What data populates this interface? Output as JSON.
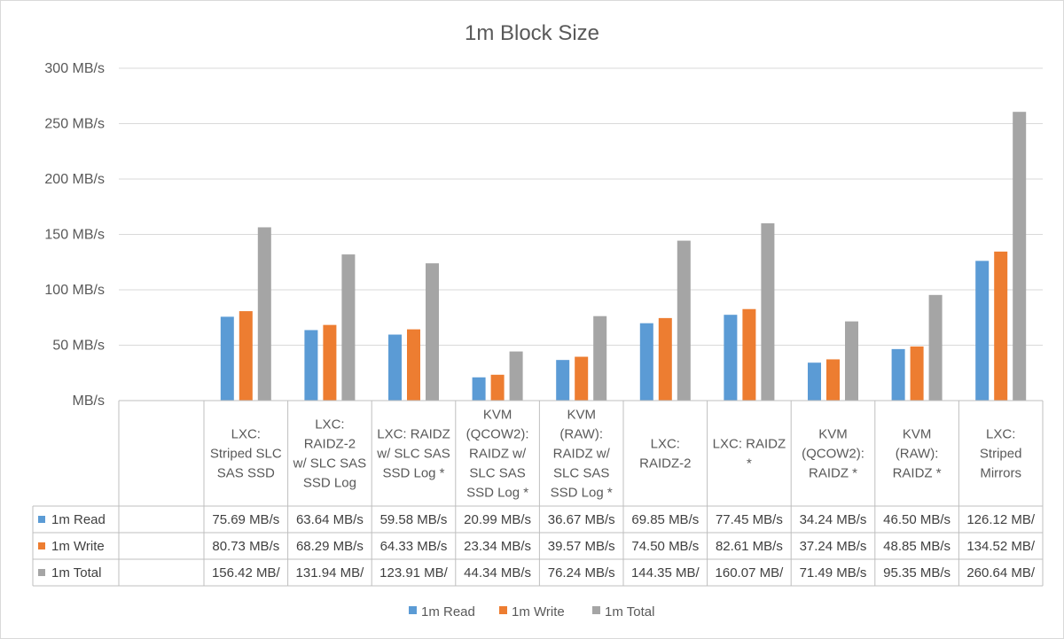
{
  "chart_data": {
    "type": "bar",
    "title": "1m Block Size",
    "ylim": [
      0,
      300
    ],
    "yticks": [
      "MB/s",
      "50 MB/s",
      "100 MB/s",
      "150 MB/s",
      "200 MB/s",
      "250 MB/s",
      "300 MB/s"
    ],
    "grid": true,
    "legend_position": "bottom",
    "categories": [
      [
        "LXC:",
        "Striped SLC",
        "SAS SSD"
      ],
      [
        "LXC:",
        "RAIDZ-2",
        "w/ SLC SAS",
        "SSD Log"
      ],
      [
        "LXC: RAIDZ",
        "w/ SLC SAS",
        "SSD Log *"
      ],
      [
        "KVM",
        "(QCOW2):",
        "RAIDZ w/",
        "SLC SAS",
        "SSD Log *"
      ],
      [
        "KVM",
        "(RAW):",
        "RAIDZ w/",
        "SLC SAS",
        "SSD Log *"
      ],
      [
        "LXC:",
        "RAIDZ-2"
      ],
      [
        "LXC: RAIDZ",
        "*"
      ],
      [
        "KVM",
        "(QCOW2):",
        "RAIDZ *"
      ],
      [
        "KVM",
        "(RAW):",
        "RAIDZ *"
      ],
      [
        "LXC:",
        "Striped",
        "Mirrors"
      ]
    ],
    "series": [
      {
        "name": "1m Read",
        "color": "#5b9bd5",
        "values": [
          75.69,
          63.64,
          59.58,
          20.99,
          36.67,
          69.85,
          77.45,
          34.24,
          46.5,
          126.12
        ],
        "labels": [
          "75.69 MB/s",
          "63.64 MB/s",
          "59.58 MB/s",
          "20.99 MB/s",
          "36.67 MB/s",
          "69.85 MB/s",
          "77.45 MB/s",
          "34.24 MB/s",
          "46.50 MB/s",
          "126.12 MB/"
        ]
      },
      {
        "name": "1m Write",
        "color": "#ed7d31",
        "values": [
          80.73,
          68.29,
          64.33,
          23.34,
          39.57,
          74.5,
          82.61,
          37.24,
          48.85,
          134.52
        ],
        "labels": [
          "80.73 MB/s",
          "68.29 MB/s",
          "64.33 MB/s",
          "23.34 MB/s",
          "39.57 MB/s",
          "74.50 MB/s",
          "82.61 MB/s",
          "37.24 MB/s",
          "48.85 MB/s",
          "134.52 MB/"
        ]
      },
      {
        "name": "1m Total",
        "color": "#a5a5a5",
        "values": [
          156.42,
          131.94,
          123.91,
          44.34,
          76.24,
          144.35,
          160.07,
          71.49,
          95.35,
          260.64
        ],
        "labels": [
          "156.42 MB/",
          "131.94 MB/",
          "123.91 MB/",
          "44.34 MB/s",
          "76.24 MB/s",
          "144.35 MB/",
          "160.07 MB/",
          "71.49 MB/s",
          "95.35 MB/s",
          "260.64 MB/"
        ]
      }
    ]
  }
}
